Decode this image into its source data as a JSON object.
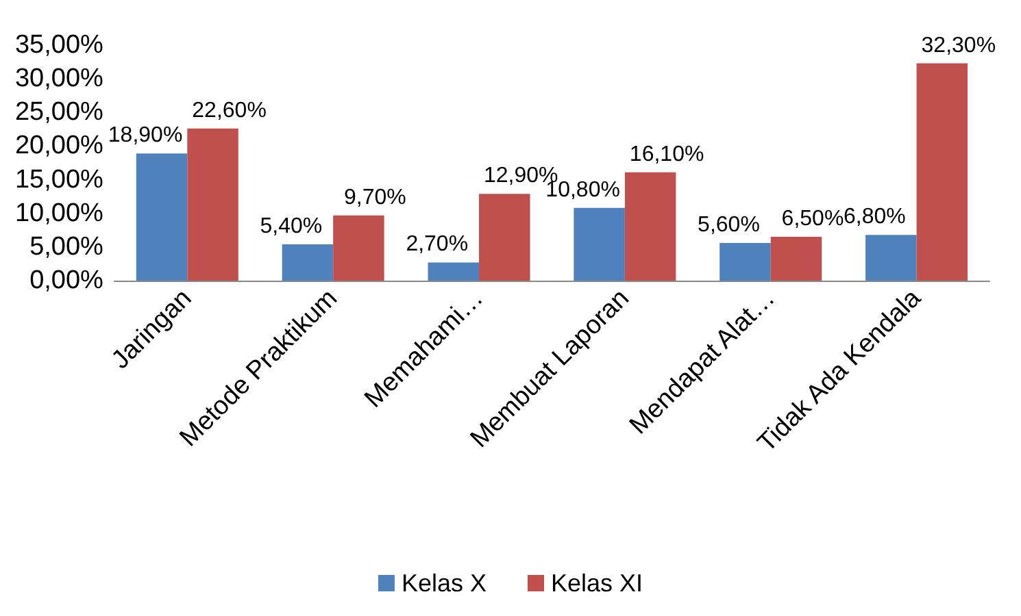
{
  "chart_data": {
    "type": "bar",
    "categories": [
      "Jaringan",
      "Metode Praktikum",
      "Memahami…",
      "Membuat Laporan",
      "Mendapat Alat…",
      "Tidak Ada Kendala"
    ],
    "series": [
      {
        "name": "Kelas X",
        "color": "#4f81bd",
        "values": [
          18.9,
          5.4,
          2.7,
          10.8,
          5.6,
          6.8
        ],
        "value_labels": [
          "18,90%",
          "5,40%",
          "2,70%",
          "10,80%",
          "5,60%",
          "6,80%"
        ]
      },
      {
        "name": "Kelas XI",
        "color": "#c0504d",
        "values": [
          22.6,
          9.7,
          12.9,
          16.1,
          6.5,
          32.3
        ],
        "value_labels": [
          "22,60%",
          "9,70%",
          "12,90%",
          "16,10%",
          "6,50%",
          "32,30%"
        ]
      }
    ],
    "ylim": [
      0,
      35
    ],
    "yticks": [
      {
        "value": 0,
        "label": "0,00%"
      },
      {
        "value": 5,
        "label": "5,00%"
      },
      {
        "value": 10,
        "label": "10,00%"
      },
      {
        "value": 15,
        "label": "15,00%"
      },
      {
        "value": 20,
        "label": "20,00%"
      },
      {
        "value": 25,
        "label": "25,00%"
      },
      {
        "value": 30,
        "label": "30,00%"
      },
      {
        "value": 35,
        "label": "35,00%"
      }
    ],
    "grid": false,
    "legend": "bottom"
  }
}
